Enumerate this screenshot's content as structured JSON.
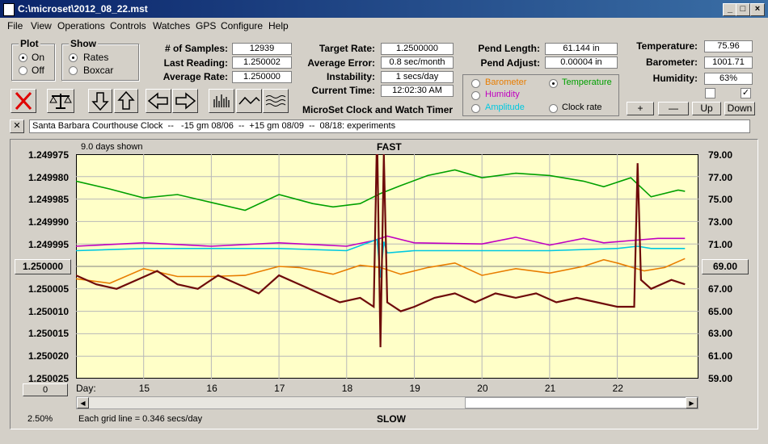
{
  "window": {
    "title": "C:\\microset\\2012_08_22.mst"
  },
  "menu": [
    "File",
    "View",
    "Operations",
    "Controls",
    "Watches",
    "GPS",
    "Configure",
    "Help"
  ],
  "plot_group": {
    "title": "Plot",
    "options": [
      "On",
      "Off"
    ],
    "selected": "On"
  },
  "show_group": {
    "title": "Show",
    "options": [
      "Rates",
      "Boxcar"
    ],
    "selected": "Rates"
  },
  "stats": {
    "samples_label": "# of Samples:",
    "samples": "12939",
    "last_reading_label": "Last Reading:",
    "last_reading": "1.250002",
    "average_rate_label": "Average Rate:",
    "average_rate": "1.250000"
  },
  "targets": {
    "target_rate_label": "Target Rate:",
    "target_rate": "1.2500000",
    "average_error_label": "Average Error:",
    "average_error": "0.8 sec/month",
    "instability_label": "Instability:",
    "instability": "1 secs/day",
    "current_time_label": "Current Time:",
    "current_time": "12:02:30 AM"
  },
  "pendulum": {
    "length_label": "Pend Length:",
    "length": "61.144 in",
    "adjust_label": "Pend Adjust:",
    "adjust": "0.00004 in"
  },
  "env": {
    "temperature_label": "Temperature:",
    "temperature": "75.96",
    "barometer_label": "Barometer:",
    "barometer": "1001.71",
    "humidity_label": "Humidity:",
    "humidity": "63%"
  },
  "overlay_options": {
    "barometer": {
      "label": "Barometer",
      "color": "#e87d00"
    },
    "temperature": {
      "label": "Temperature",
      "color": "#00a000",
      "selected": true
    },
    "humidity": {
      "label": "Humidity",
      "color": "#c000c0"
    },
    "amplitude": {
      "label": "Amplitude",
      "color": "#00c8e0"
    },
    "clock_rate": {
      "label": "Clock rate"
    }
  },
  "adjust_buttons": {
    "plus": "+",
    "minus": "—",
    "up": "Up",
    "down": "Down"
  },
  "app_name": "MicroSet Clock and Watch Timer",
  "comment": "Santa Barbara Courthouse Clock  --   -15 gm 08/06  --  +15 gm 08/09  --  08/18: experiments",
  "close_glyph": "✕",
  "chart_header": {
    "days_shown": "9.0 days shown",
    "fast": "FAST",
    "slow": "SLOW"
  },
  "center_left_value": "1.250000",
  "center_right_value": "69.00",
  "offset_button": "0",
  "footer": {
    "zoom": "2.50%",
    "grid_note": "Each grid line = 0.346 secs/day"
  },
  "chart_data": {
    "type": "line",
    "x_axis_label": "Day:",
    "x_ticks": [
      "15",
      "16",
      "17",
      "18",
      "19",
      "20",
      "21",
      "22"
    ],
    "xlim": [
      14.0,
      23.2
    ],
    "left_ticks": [
      "1.249975",
      "1.249980",
      "1.249985",
      "1.249990",
      "1.249995",
      "1.250000",
      "1.250005",
      "1.250010",
      "1.250015",
      "1.250020",
      "1.250025"
    ],
    "left_ylim": [
      1.249975,
      1.250025
    ],
    "right_ticks": [
      "79.00",
      "77.00",
      "75.00",
      "73.00",
      "71.00",
      "69.00",
      "67.00",
      "65.00",
      "63.00",
      "61.00",
      "59.00"
    ],
    "right_ylim": [
      59,
      79
    ],
    "grid": true,
    "series": [
      {
        "name": "Temperature",
        "color": "#00a000",
        "axis": "right",
        "x": [
          14.0,
          14.5,
          15.0,
          15.5,
          16.0,
          16.5,
          17.0,
          17.5,
          17.8,
          18.2,
          18.5,
          18.8,
          19.2,
          19.6,
          20.0,
          20.5,
          21.0,
          21.5,
          21.8,
          22.2,
          22.5,
          22.9,
          23.0
        ],
        "y": [
          76.6,
          75.9,
          75.1,
          75.4,
          74.7,
          74.0,
          75.4,
          74.6,
          74.3,
          74.6,
          75.5,
          76.2,
          77.1,
          77.6,
          76.9,
          77.3,
          77.1,
          76.6,
          76.1,
          76.9,
          75.2,
          75.8,
          75.7
        ]
      },
      {
        "name": "Humidity",
        "color": "#c000c0",
        "axis": "right",
        "x": [
          14.0,
          15.0,
          16.0,
          17.0,
          18.0,
          18.4,
          18.6,
          19.0,
          20.0,
          20.5,
          21.0,
          21.5,
          21.8,
          22.2,
          22.6,
          23.0
        ],
        "y": [
          70.8,
          71.1,
          70.8,
          71.1,
          70.8,
          71.3,
          71.7,
          71.1,
          71.0,
          71.6,
          70.9,
          71.5,
          71.1,
          71.3,
          71.5,
          71.5
        ]
      },
      {
        "name": "Amplitude",
        "color": "#00c8e0",
        "axis": "right",
        "x": [
          14.0,
          15.0,
          16.0,
          17.0,
          18.0,
          18.45,
          18.5,
          18.55,
          18.6,
          19.0,
          20.0,
          21.0,
          22.0,
          22.3,
          22.5,
          23.0
        ],
        "y": [
          70.4,
          70.6,
          70.6,
          70.6,
          70.4,
          71.4,
          68.0,
          71.2,
          70.2,
          70.4,
          70.4,
          70.4,
          70.6,
          70.8,
          70.6,
          70.6
        ]
      },
      {
        "name": "Barometer",
        "color": "#e87d00",
        "axis": "right",
        "x": [
          14.0,
          14.5,
          15.0,
          15.5,
          16.0,
          16.5,
          17.0,
          17.3,
          17.8,
          18.2,
          18.5,
          18.8,
          19.2,
          19.6,
          20.0,
          20.5,
          21.0,
          21.5,
          21.8,
          22.0,
          22.4,
          22.7,
          23.0
        ],
        "y": [
          67.9,
          67.5,
          68.8,
          68.1,
          68.1,
          68.2,
          69.0,
          68.9,
          68.3,
          69.1,
          68.9,
          68.3,
          68.9,
          69.3,
          68.2,
          68.8,
          68.4,
          69.0,
          69.6,
          69.3,
          68.6,
          68.9,
          69.7
        ]
      },
      {
        "name": "Clock rate",
        "color": "#6e0a0a",
        "axis": "left",
        "x": [
          14.0,
          14.3,
          14.6,
          14.9,
          15.2,
          15.5,
          15.8,
          16.1,
          16.4,
          16.7,
          17.0,
          17.3,
          17.6,
          17.9,
          18.2,
          18.4,
          18.45,
          18.5,
          18.55,
          18.6,
          18.8,
          19.0,
          19.3,
          19.6,
          19.9,
          20.2,
          20.5,
          20.8,
          21.1,
          21.4,
          21.7,
          22.0,
          22.25,
          22.3,
          22.35,
          22.5,
          22.8,
          23.0
        ],
        "y": [
          1.250002,
          1.250004,
          1.250005,
          1.250003,
          1.250001,
          1.250004,
          1.250005,
          1.250002,
          1.250004,
          1.250006,
          1.250002,
          1.250004,
          1.250006,
          1.250008,
          1.250007,
          1.250009,
          1.24997,
          1.250018,
          1.249975,
          1.250008,
          1.25001,
          1.250009,
          1.250007,
          1.250006,
          1.250008,
          1.250006,
          1.250007,
          1.250006,
          1.250008,
          1.250007,
          1.250008,
          1.250009,
          1.250009,
          1.249977,
          1.250003,
          1.250005,
          1.250003,
          1.250004
        ]
      }
    ]
  }
}
